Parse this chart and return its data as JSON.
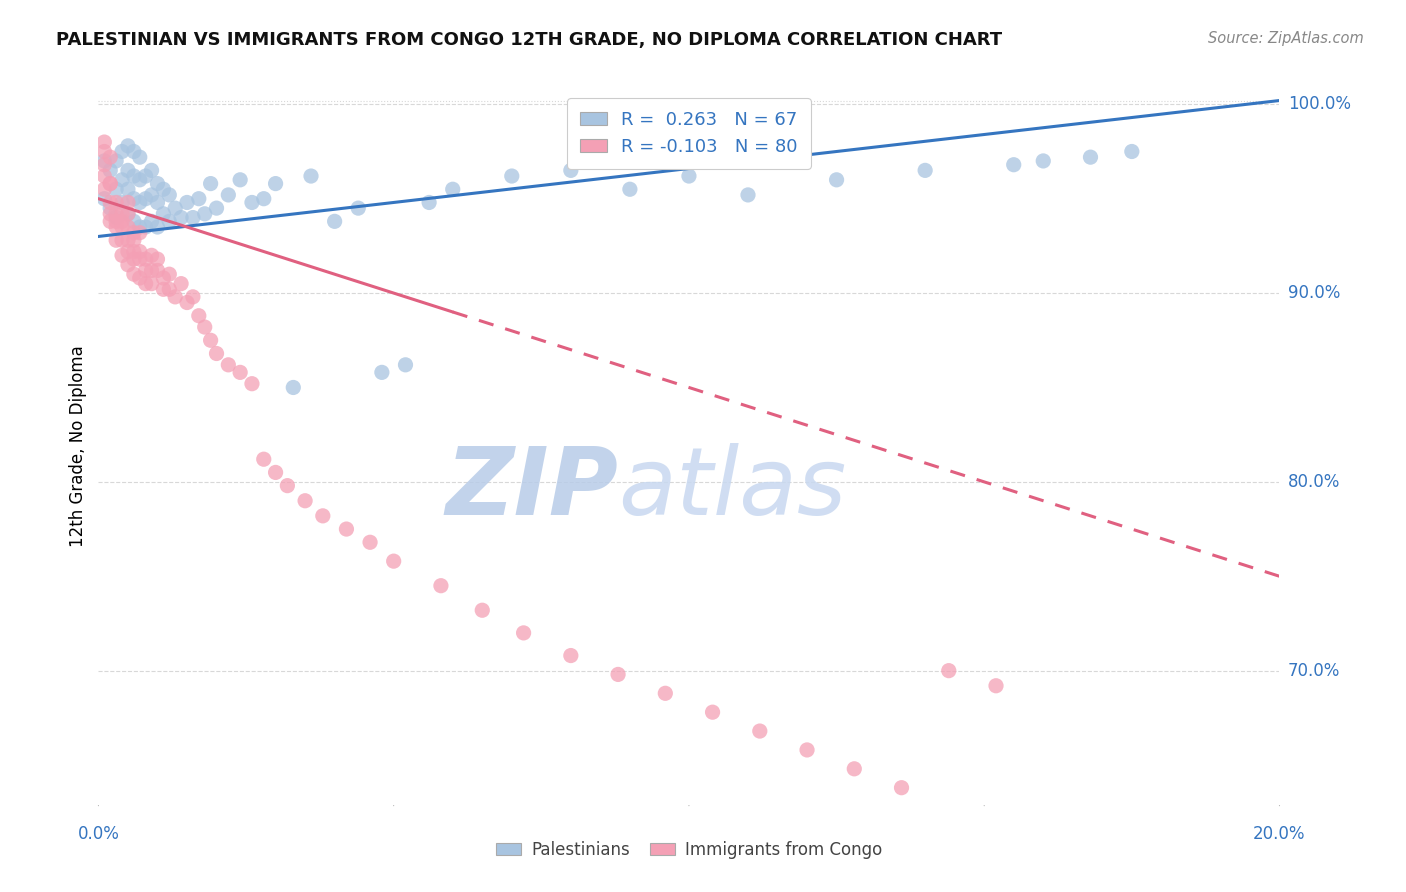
{
  "title": "PALESTINIAN VS IMMIGRANTS FROM CONGO 12TH GRADE, NO DIPLOMA CORRELATION CHART",
  "source": "Source: ZipAtlas.com",
  "ylabel": "12th Grade, No Diploma",
  "xmin": 0.0,
  "xmax": 0.2,
  "ymin": 0.63,
  "ymax": 1.008,
  "yticks": [
    0.7,
    0.8,
    0.9,
    1.0
  ],
  "ytick_labels": [
    "70.0%",
    "80.0%",
    "90.0%",
    "100.0%"
  ],
  "legend_r_blue": "R =  0.263",
  "legend_n_blue": "N = 67",
  "legend_r_pink": "R = -0.103",
  "legend_n_pink": "N = 80",
  "blue_color": "#a8c4e0",
  "pink_color": "#f4a0b5",
  "blue_line_color": "#3575c0",
  "pink_line_color": "#e06080",
  "watermark_zip": "ZIP",
  "watermark_atlas": "atlas",
  "watermark_color_zip": "#c0d4ee",
  "watermark_color_atlas": "#b8cce8",
  "blue_scatter_x": [
    0.001,
    0.001,
    0.002,
    0.002,
    0.003,
    0.003,
    0.003,
    0.004,
    0.004,
    0.004,
    0.005,
    0.005,
    0.005,
    0.005,
    0.006,
    0.006,
    0.006,
    0.006,
    0.007,
    0.007,
    0.007,
    0.007,
    0.008,
    0.008,
    0.008,
    0.009,
    0.009,
    0.009,
    0.01,
    0.01,
    0.01,
    0.011,
    0.011,
    0.012,
    0.012,
    0.013,
    0.014,
    0.015,
    0.016,
    0.017,
    0.018,
    0.019,
    0.02,
    0.022,
    0.024,
    0.026,
    0.028,
    0.03,
    0.033,
    0.036,
    0.04,
    0.044,
    0.048,
    0.052,
    0.056,
    0.06,
    0.07,
    0.08,
    0.09,
    0.1,
    0.11,
    0.125,
    0.14,
    0.155,
    0.16,
    0.168,
    0.175
  ],
  "blue_scatter_y": [
    0.95,
    0.97,
    0.945,
    0.965,
    0.94,
    0.955,
    0.97,
    0.948,
    0.96,
    0.975,
    0.942,
    0.955,
    0.965,
    0.978,
    0.938,
    0.95,
    0.962,
    0.975,
    0.935,
    0.948,
    0.96,
    0.972,
    0.935,
    0.95,
    0.962,
    0.938,
    0.952,
    0.965,
    0.935,
    0.948,
    0.958,
    0.942,
    0.955,
    0.938,
    0.952,
    0.945,
    0.94,
    0.948,
    0.94,
    0.95,
    0.942,
    0.958,
    0.945,
    0.952,
    0.96,
    0.948,
    0.95,
    0.958,
    0.85,
    0.962,
    0.938,
    0.945,
    0.858,
    0.862,
    0.948,
    0.955,
    0.962,
    0.965,
    0.955,
    0.962,
    0.952,
    0.96,
    0.965,
    0.968,
    0.97,
    0.972,
    0.975
  ],
  "pink_scatter_x": [
    0.001,
    0.001,
    0.001,
    0.001,
    0.001,
    0.002,
    0.002,
    0.002,
    0.002,
    0.002,
    0.002,
    0.003,
    0.003,
    0.003,
    0.003,
    0.003,
    0.004,
    0.004,
    0.004,
    0.004,
    0.004,
    0.005,
    0.005,
    0.005,
    0.005,
    0.005,
    0.005,
    0.006,
    0.006,
    0.006,
    0.006,
    0.006,
    0.007,
    0.007,
    0.007,
    0.007,
    0.008,
    0.008,
    0.008,
    0.009,
    0.009,
    0.009,
    0.01,
    0.01,
    0.011,
    0.011,
    0.012,
    0.012,
    0.013,
    0.014,
    0.015,
    0.016,
    0.017,
    0.018,
    0.019,
    0.02,
    0.022,
    0.024,
    0.026,
    0.028,
    0.03,
    0.032,
    0.035,
    0.038,
    0.042,
    0.046,
    0.05,
    0.058,
    0.065,
    0.072,
    0.08,
    0.088,
    0.096,
    0.104,
    0.112,
    0.12,
    0.128,
    0.136,
    0.144,
    0.152
  ],
  "pink_scatter_y": [
    0.975,
    0.968,
    0.962,
    0.955,
    0.98,
    0.958,
    0.948,
    0.942,
    0.938,
    0.958,
    0.972,
    0.948,
    0.942,
    0.935,
    0.928,
    0.938,
    0.942,
    0.935,
    0.928,
    0.92,
    0.938,
    0.935,
    0.928,
    0.922,
    0.915,
    0.942,
    0.948,
    0.928,
    0.922,
    0.918,
    0.91,
    0.932,
    0.922,
    0.918,
    0.932,
    0.908,
    0.918,
    0.912,
    0.905,
    0.92,
    0.912,
    0.905,
    0.912,
    0.918,
    0.908,
    0.902,
    0.91,
    0.902,
    0.898,
    0.905,
    0.895,
    0.898,
    0.888,
    0.882,
    0.875,
    0.868,
    0.862,
    0.858,
    0.852,
    0.812,
    0.805,
    0.798,
    0.79,
    0.782,
    0.775,
    0.768,
    0.758,
    0.745,
    0.732,
    0.72,
    0.708,
    0.698,
    0.688,
    0.678,
    0.668,
    0.658,
    0.648,
    0.638,
    0.7,
    0.692
  ],
  "blue_trend_x": [
    0.0,
    0.2
  ],
  "blue_trend_y": [
    0.93,
    1.002
  ],
  "pink_trend_x": [
    0.0,
    0.2
  ],
  "pink_trend_y": [
    0.95,
    0.75
  ],
  "pink_trend_solid_end": 0.06,
  "xtick_positions": [
    0.0,
    0.05,
    0.1,
    0.15,
    0.2
  ],
  "grid_color": "#d8d8d8",
  "dot_top_line": "#cccccc"
}
